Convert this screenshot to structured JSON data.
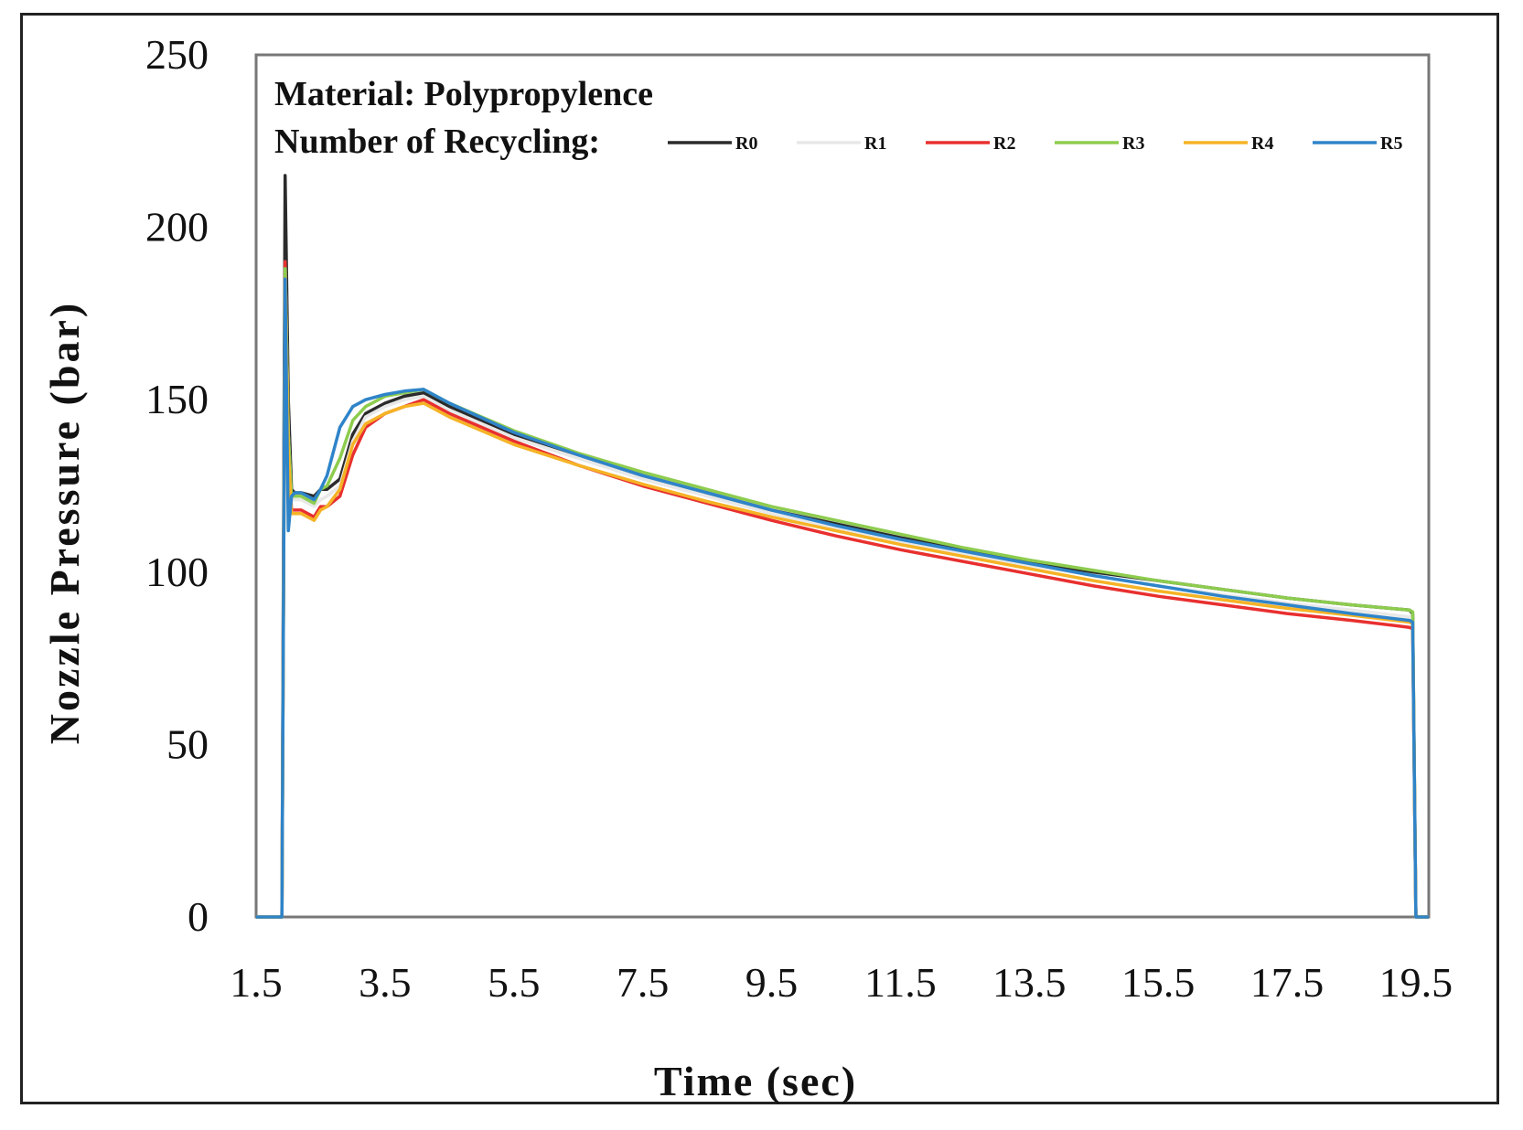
{
  "chart_data": {
    "type": "line",
    "title": "Material: Polypropylence",
    "legend_title": "Number of Recycling:",
    "xlabel": "Time (sec)",
    "ylabel": "Nozzle Pressure (bar)",
    "xlim": [
      1.5,
      19.7
    ],
    "ylim": [
      0,
      250
    ],
    "xticks": [
      1.5,
      3.5,
      5.5,
      7.5,
      9.5,
      11.5,
      13.5,
      15.5,
      17.5,
      19.5
    ],
    "xtick_labels": [
      "1.5",
      "3.5",
      "5.5",
      "7.5",
      "9.5",
      "11.5",
      "13.5",
      "15.5",
      "17.5",
      "19.5"
    ],
    "yticks": [
      0,
      50,
      100,
      150,
      200,
      250
    ],
    "ytick_labels": [
      "0",
      "50",
      "100",
      "150",
      "200",
      "250"
    ],
    "legend_position": "top",
    "series": [
      {
        "name": "R0",
        "color": "#2b2b2b",
        "x": [
          1.5,
          1.9,
          1.95,
          2.0,
          2.05,
          2.1,
          2.2,
          2.4,
          2.5,
          2.6,
          2.8,
          3.0,
          3.2,
          3.5,
          3.8,
          4.1,
          4.5,
          5.5,
          6.5,
          7.5,
          8.5,
          9.5,
          10.5,
          11.5,
          12.5,
          13.5,
          14.5,
          15.5,
          16.5,
          17.5,
          18.5,
          19.4,
          19.45,
          19.5,
          19.7
        ],
        "y": [
          0,
          0,
          215,
          150,
          124,
          123,
          123,
          122,
          124,
          124,
          127,
          140,
          146,
          149,
          151,
          152,
          148,
          140,
          134,
          128,
          123,
          118,
          114,
          110,
          106.5,
          103,
          100,
          97.5,
          95,
          92.5,
          90.5,
          89,
          88,
          0,
          0
        ]
      },
      {
        "name": "R1",
        "color": "#e8e8e8",
        "x": [
          1.5,
          1.9,
          1.95,
          2.0,
          2.05,
          2.1,
          2.2,
          2.4,
          2.5,
          2.6,
          2.8,
          3.0,
          3.2,
          3.5,
          3.8,
          4.1,
          4.5,
          5.5,
          6.5,
          7.5,
          8.5,
          9.5,
          10.5,
          11.5,
          12.5,
          13.5,
          14.5,
          15.5,
          16.5,
          17.5,
          18.5,
          19.4,
          19.45,
          19.5,
          19.7
        ],
        "y": [
          0,
          0,
          190,
          140,
          121,
          121,
          121,
          119,
          121,
          122,
          125,
          138,
          145,
          148,
          150,
          151,
          147,
          139,
          133,
          127,
          122,
          117,
          113,
          109,
          105.5,
          102,
          99,
          96,
          93.5,
          91,
          89,
          87,
          86,
          0,
          0
        ]
      },
      {
        "name": "R2",
        "color": "#e8302f",
        "x": [
          1.5,
          1.9,
          1.95,
          2.0,
          2.05,
          2.1,
          2.2,
          2.4,
          2.5,
          2.6,
          2.8,
          3.0,
          3.2,
          3.5,
          3.8,
          4.1,
          4.5,
          5.5,
          6.5,
          7.5,
          8.5,
          9.5,
          10.5,
          11.5,
          12.5,
          13.5,
          14.5,
          15.5,
          16.5,
          17.5,
          18.5,
          19.4,
          19.45,
          19.5,
          19.7
        ],
        "y": [
          0,
          0,
          190,
          135,
          118,
          118,
          118,
          116,
          119,
          119,
          122,
          134,
          142,
          146,
          148,
          150,
          146,
          138,
          131,
          125,
          120,
          115,
          110.5,
          106.5,
          103,
          99.5,
          96,
          93,
          90.5,
          88,
          86,
          84,
          83.5,
          0,
          0
        ]
      },
      {
        "name": "R3",
        "color": "#8dcc4e",
        "x": [
          1.5,
          1.9,
          1.95,
          2.0,
          2.05,
          2.1,
          2.2,
          2.4,
          2.5,
          2.6,
          2.8,
          3.0,
          3.2,
          3.5,
          3.8,
          4.1,
          4.5,
          5.5,
          6.5,
          7.5,
          8.5,
          9.5,
          10.5,
          11.5,
          12.5,
          13.5,
          14.5,
          15.5,
          16.5,
          17.5,
          18.5,
          19.4,
          19.45,
          19.5,
          19.7
        ],
        "y": [
          0,
          0,
          188,
          140,
          122,
          122,
          122,
          120,
          124,
          125,
          133,
          144,
          148,
          151,
          152,
          153,
          149,
          141,
          134.5,
          129,
          124,
          119,
          115,
          111,
          107,
          103.5,
          100.5,
          97.5,
          95,
          92.5,
          90.5,
          89,
          88.5,
          0,
          0
        ]
      },
      {
        "name": "R4",
        "color": "#f5b326",
        "x": [
          1.5,
          1.9,
          1.95,
          2.0,
          2.05,
          2.1,
          2.2,
          2.4,
          2.5,
          2.6,
          2.8,
          3.0,
          3.2,
          3.5,
          3.8,
          4.1,
          4.5,
          5.5,
          6.5,
          7.5,
          8.5,
          9.5,
          10.5,
          11.5,
          12.5,
          13.5,
          14.5,
          15.5,
          16.5,
          17.5,
          18.5,
          19.4,
          19.45,
          19.5,
          19.7
        ],
        "y": [
          0,
          0,
          185,
          135,
          117,
          117,
          117,
          115,
          118,
          119,
          124,
          137,
          143,
          146,
          148,
          149,
          145,
          137,
          131,
          125.5,
          120.5,
          116,
          112,
          108,
          104.5,
          101,
          97.5,
          94.5,
          92,
          89.5,
          87.5,
          85.5,
          85,
          0,
          0
        ]
      },
      {
        "name": "R5",
        "color": "#2f84c9",
        "x": [
          1.5,
          1.9,
          1.95,
          2.0,
          2.05,
          2.1,
          2.2,
          2.4,
          2.5,
          2.6,
          2.8,
          3.0,
          3.2,
          3.5,
          3.8,
          4.1,
          4.5,
          5.5,
          6.5,
          7.5,
          8.5,
          9.5,
          10.5,
          11.5,
          12.5,
          13.5,
          14.5,
          15.5,
          16.5,
          17.5,
          18.5,
          19.4,
          19.45,
          19.5,
          19.7
        ],
        "y": [
          0,
          0,
          185,
          112,
          122,
          123,
          123,
          121,
          124,
          128,
          142,
          148,
          150,
          151.5,
          152.5,
          153,
          149,
          140.5,
          134,
          128,
          123,
          118,
          113.5,
          109.5,
          106,
          102.5,
          99,
          96,
          93,
          90.5,
          88,
          86,
          85.5,
          0,
          0
        ]
      }
    ]
  }
}
